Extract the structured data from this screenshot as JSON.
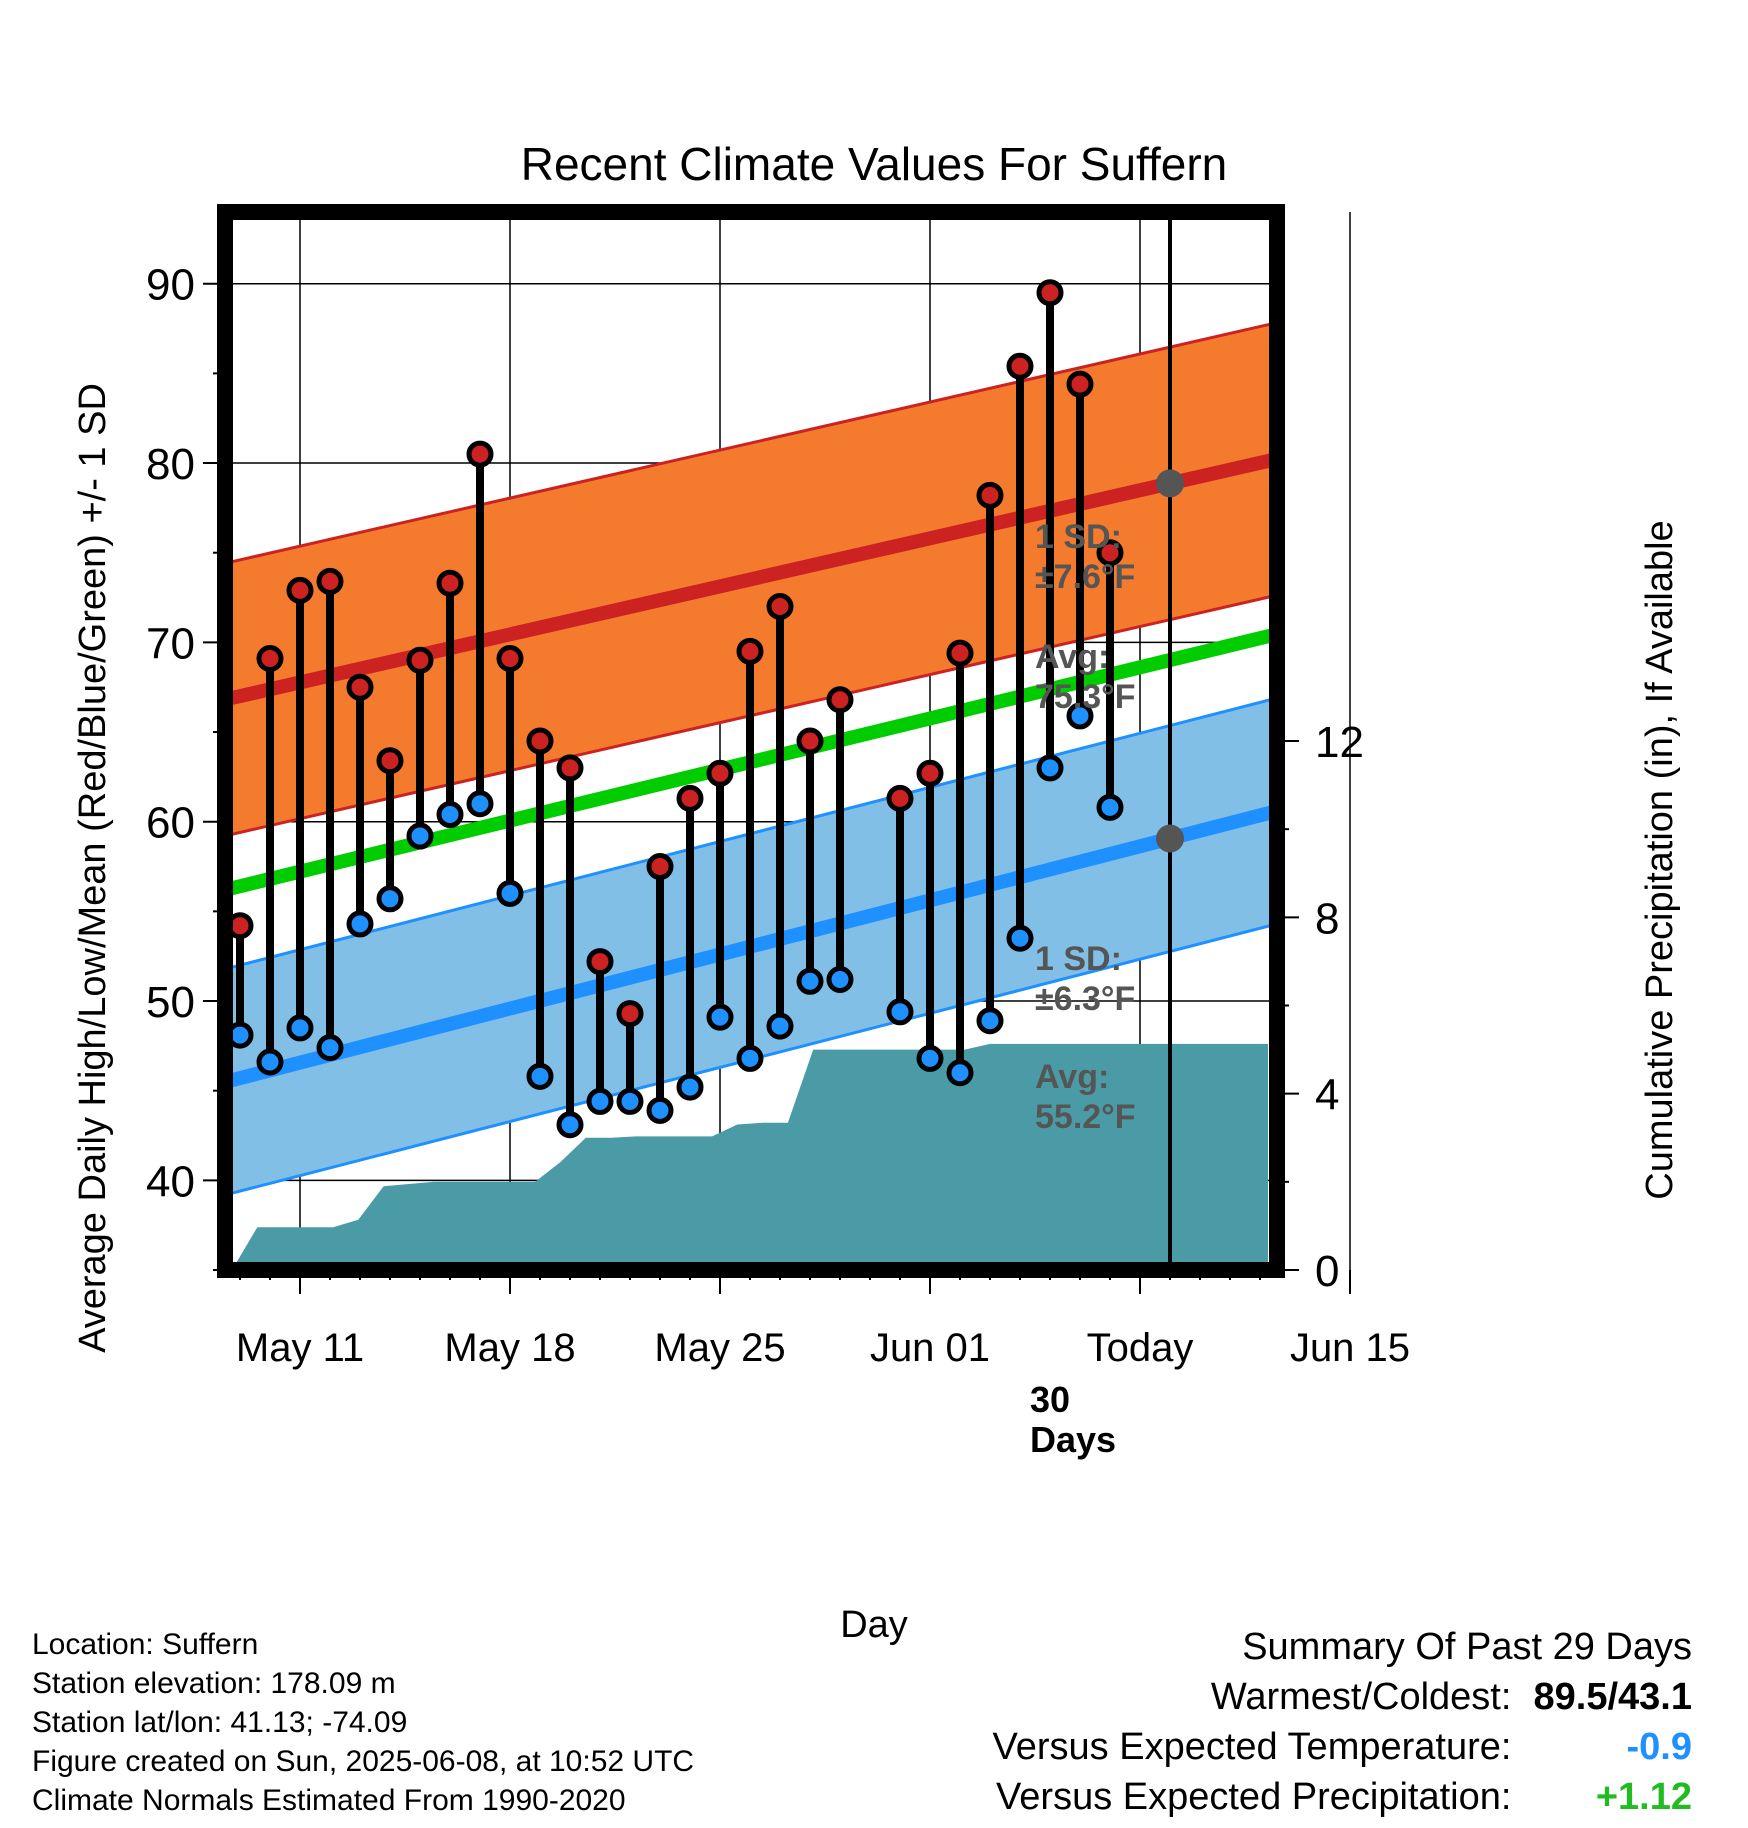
{
  "chart_data": {
    "type": "line",
    "title": "Recent Climate Values For Suffern",
    "xlabel": "Day",
    "ylabel": "Average Daily High/Low/Mean (Red/Blue/Green) +/- 1 SD",
    "y2label": "Cumulative Precipitation (in), If Available",
    "ylim": [
      35,
      94
    ],
    "y2lim": [
      0,
      24
    ],
    "y_ticks": [
      "40",
      "50",
      "60",
      "70",
      "80",
      "90"
    ],
    "y2_ticks": [
      "0",
      "4",
      "8",
      "12"
    ],
    "x_ticks": [
      "May 11",
      "May 18",
      "May 25",
      "Jun 01",
      "Today",
      "Jun 15"
    ],
    "today_label": "30\nDays",
    "grid": true,
    "normals": {
      "high_avg": [
        67.0,
        78.1
      ],
      "high_sd": 7.6,
      "low_avg": [
        45.7,
        58.2
      ],
      "low_sd": 6.3,
      "mean": [
        56.4,
        68.2
      ]
    },
    "annotations": {
      "high_sd": "1 SD:\n±7.6°F",
      "high_avg": "Avg:\n75.3°F",
      "low_sd": "1 SD:\n±6.3°F",
      "low_avg": "Avg:\n55.2°F"
    },
    "series": [
      {
        "name": "High",
        "values": [
          54.2,
          69.1,
          72.9,
          73.4,
          67.5,
          63.4,
          69.0,
          73.3,
          80.5,
          69.1,
          64.5,
          63.0,
          52.2,
          49.3,
          57.5,
          61.3,
          62.7,
          69.5,
          72.0,
          64.5,
          66.8,
          null,
          61.3,
          62.7,
          69.4,
          78.2,
          85.4,
          89.5,
          84.4,
          75.0
        ]
      },
      {
        "name": "Low",
        "values": [
          48.1,
          46.6,
          48.5,
          47.4,
          54.3,
          55.7,
          59.2,
          60.4,
          61.0,
          56.0,
          45.8,
          43.1,
          44.4,
          44.4,
          43.9,
          45.2,
          49.1,
          46.8,
          48.6,
          51.1,
          51.2,
          null,
          49.4,
          46.8,
          46.0,
          48.9,
          53.5,
          63.0,
          65.9,
          60.8
        ]
      },
      {
        "name": "Precip",
        "values": [
          0.0,
          0.97,
          0.97,
          0.97,
          0.97,
          1.14,
          1.9,
          1.95,
          2.0,
          2.0,
          2.0,
          2.0,
          2.0,
          2.45,
          3.0,
          3.0,
          3.03,
          3.03,
          3.03,
          3.03,
          3.3,
          3.34,
          3.34,
          5.0,
          5.0,
          5.0,
          5.0,
          5.0,
          5.0,
          5.0,
          5.13,
          5.13,
          5.13,
          5.13,
          5.13,
          5.13,
          5.13,
          5.13,
          5.13,
          5.13,
          5.13,
          5.13
        ]
      }
    ],
    "colors": {
      "high": "#cc2222",
      "low": "#1e90ff",
      "mean": "#00cc00",
      "high_band": "#f47a2e",
      "low_band": "#82bfe6",
      "precip": "#4a9ba5",
      "annotation": "#555555"
    }
  },
  "footer": {
    "location": "Location: Suffern",
    "elevation": "Station elevation: 178.09 m",
    "latlon": "Station lat/lon: 41.13; -74.09",
    "created": "Figure created on Sun, 2025-06-08, at 10:52 UTC",
    "normals": "Climate Normals Estimated From 1990-2020"
  },
  "summary": {
    "heading": "Summary Of Past 29 Days",
    "warm_cold_label": "Warmest/Coldest:",
    "warm_cold_value": "89.5/43.1",
    "temp_label": "Versus Expected Temperature:",
    "temp_value": "-0.9",
    "temp_color": "#1e90ff",
    "precip_label": "Versus Expected Precipitation:",
    "precip_value": "+1.12",
    "precip_color": "#22bb22"
  }
}
